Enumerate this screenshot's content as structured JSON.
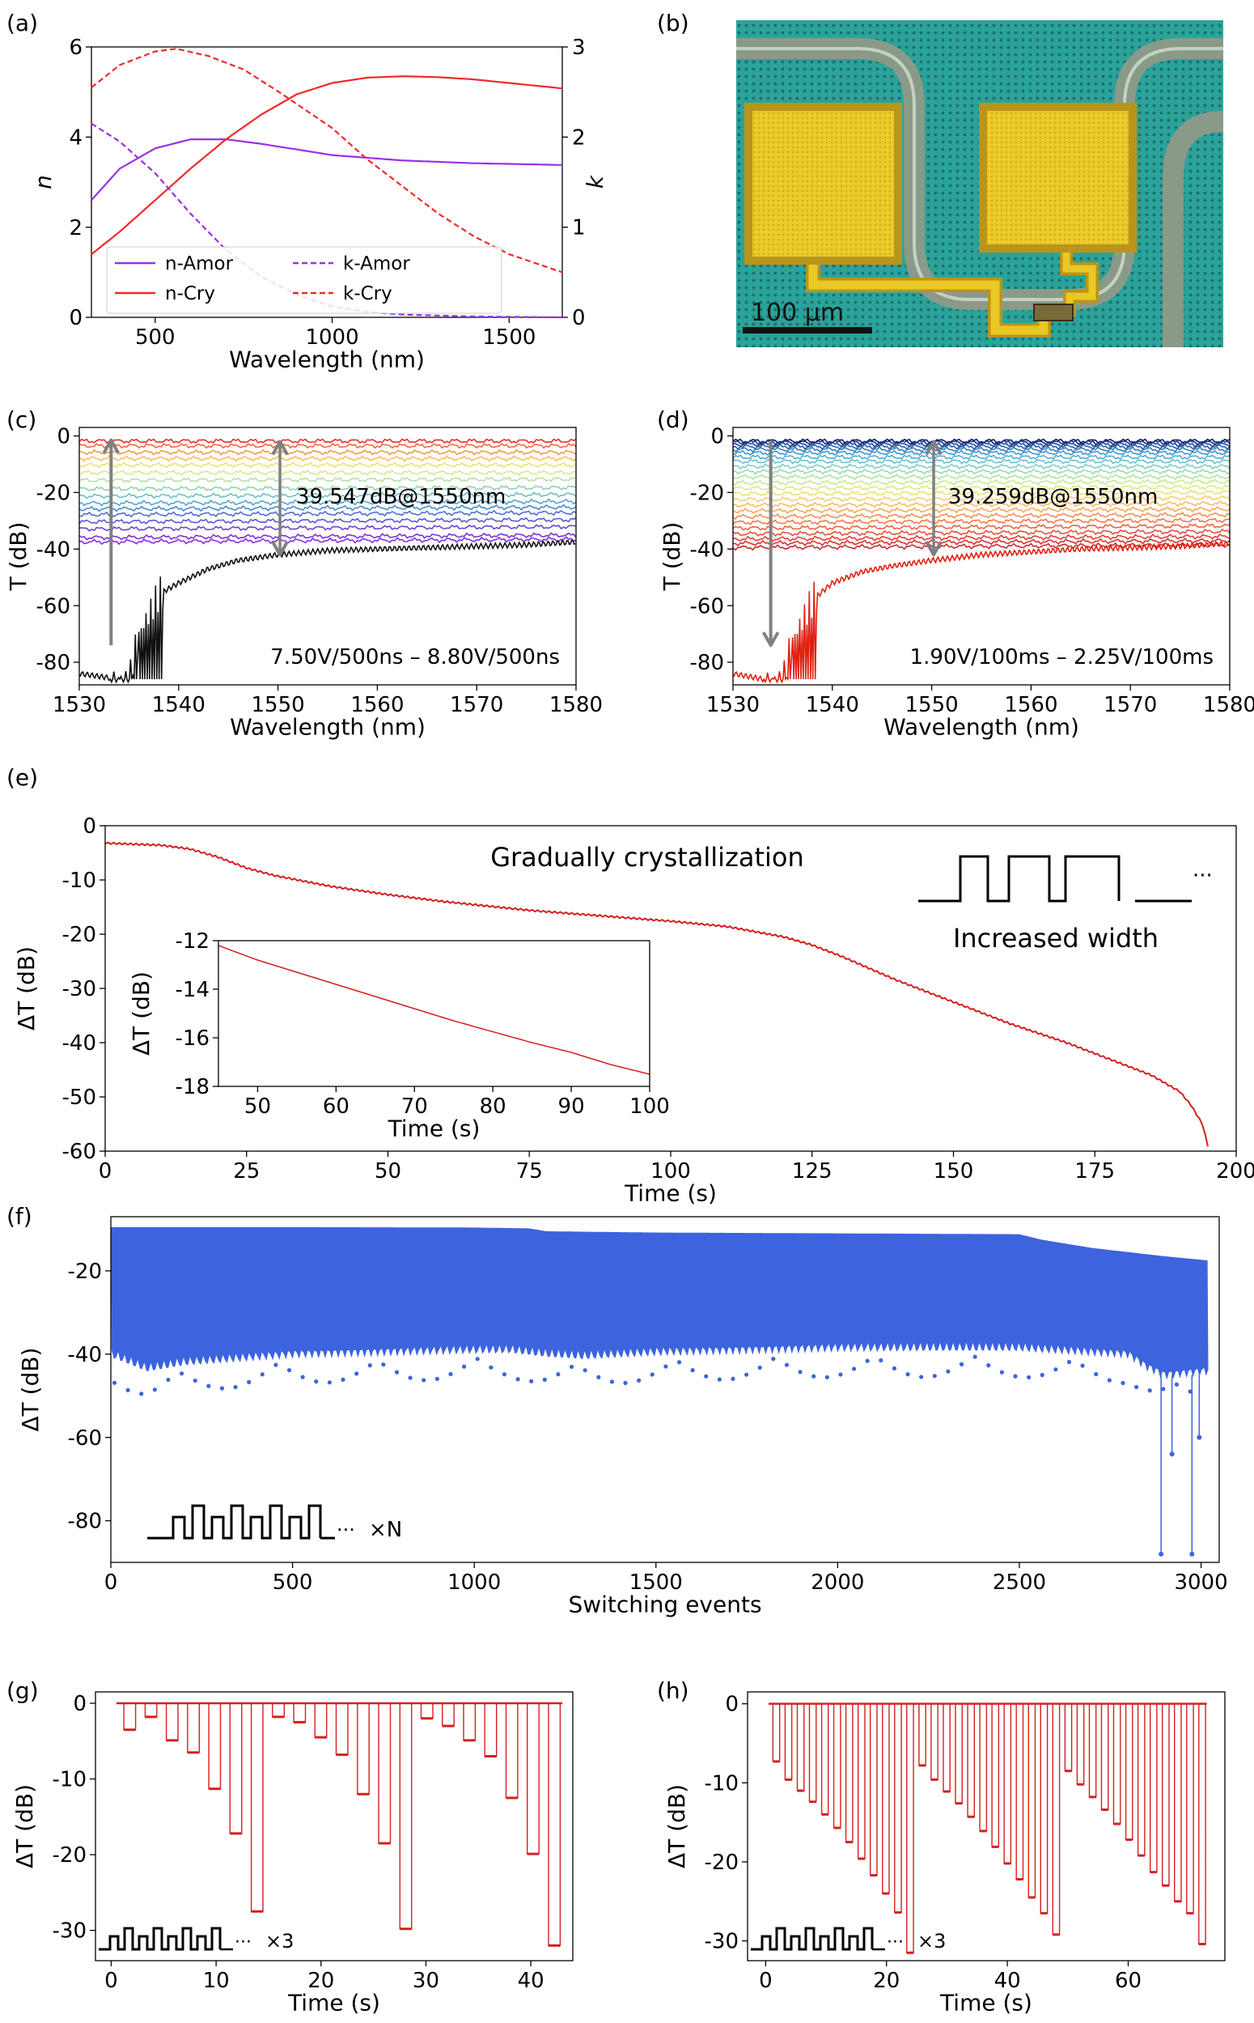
{
  "panels": {
    "a": {
      "label": "(a)"
    },
    "b": {
      "label": "(b)"
    },
    "c": {
      "label": "(c)"
    },
    "d": {
      "label": "(d)"
    },
    "e": {
      "label": "(e)"
    },
    "f": {
      "label": "(f)"
    },
    "g": {
      "label": "(g)"
    },
    "h": {
      "label": "(h)"
    }
  },
  "colors": {
    "amor": "#9b30e8",
    "cry": "#ee2b2b",
    "blue": "#3d64dd",
    "black": "#111111",
    "gray": "#808080",
    "trace_red": "#d42020"
  },
  "micrograph": {
    "scalebar_label": "100 μm",
    "description_colors": {
      "background": "#2aa39a",
      "pad": "#e8c21e",
      "waveguide": "#8a9a88"
    }
  },
  "chart_data": [
    {
      "id": "a",
      "type": "line",
      "xlabel": "Wavelength (nm)",
      "ylabel_left": "n",
      "ylabel_right": "k",
      "xlim": [
        320,
        1650
      ],
      "ylim_left": [
        0,
        6
      ],
      "ylim_right": [
        0,
        3
      ],
      "xticks": [
        500,
        1000,
        1500
      ],
      "yticks_left": [
        0,
        2,
        4,
        6
      ],
      "yticks_right": [
        0,
        1,
        2,
        3
      ],
      "legend": {
        "position": "bottom-left",
        "entries": [
          "n-Amor",
          "n-Cry",
          "k-Amor",
          "k-Cry"
        ]
      },
      "series": [
        {
          "name": "n-Amor",
          "axis": "left",
          "style": "solid",
          "color": "#9b30e8",
          "x": [
            320,
            400,
            500,
            600,
            700,
            800,
            1000,
            1200,
            1400,
            1650
          ],
          "y": [
            2.6,
            3.3,
            3.75,
            3.95,
            3.95,
            3.85,
            3.6,
            3.48,
            3.42,
            3.38
          ]
        },
        {
          "name": "n-Cry",
          "axis": "left",
          "style": "solid",
          "color": "#ee2b2b",
          "x": [
            320,
            400,
            500,
            600,
            700,
            800,
            900,
            1000,
            1100,
            1200,
            1300,
            1400,
            1500,
            1650
          ],
          "y": [
            1.4,
            1.9,
            2.6,
            3.3,
            3.95,
            4.5,
            4.95,
            5.2,
            5.32,
            5.35,
            5.33,
            5.28,
            5.2,
            5.08
          ]
        },
        {
          "name": "k-Amor",
          "axis": "right",
          "style": "dashed",
          "color": "#9b30e8",
          "x": [
            320,
            400,
            500,
            600,
            700,
            800,
            900,
            1000,
            1100,
            1200,
            1400,
            1650
          ],
          "y": [
            2.15,
            1.95,
            1.6,
            1.15,
            0.75,
            0.45,
            0.25,
            0.12,
            0.06,
            0.03,
            0.01,
            0.0
          ]
        },
        {
          "name": "k-Cry",
          "axis": "right",
          "style": "dashed",
          "color": "#ee2b2b",
          "x": [
            320,
            400,
            500,
            560,
            650,
            750,
            850,
            1000,
            1100,
            1200,
            1300,
            1400,
            1500,
            1650
          ],
          "y": [
            2.55,
            2.8,
            2.95,
            2.98,
            2.9,
            2.75,
            2.5,
            2.1,
            1.75,
            1.45,
            1.15,
            0.9,
            0.7,
            0.5
          ]
        }
      ]
    },
    {
      "id": "c",
      "type": "line",
      "xlabel": "Wavelength (nm)",
      "ylabel": "T (dB)",
      "xlim": [
        1530,
        1580
      ],
      "ylim": [
        -88,
        3
      ],
      "xticks": [
        1530,
        1540,
        1550,
        1560,
        1570,
        1580
      ],
      "yticks": [
        0,
        -20,
        -40,
        -60,
        -80
      ],
      "annotation": "39.547dB@1550nm",
      "range_label": "7.50V/500ns – 8.80V/500ns",
      "contrast_db": 39.547,
      "family": {
        "count": 16,
        "levels": [
          -1.8,
          -3.5,
          -5.8,
          -8.0,
          -10.3,
          -13.0,
          -15.5,
          -18.5,
          -21.0,
          -23.5,
          -25.5,
          -27.5,
          -30.0,
          -32.5,
          -35.5,
          -37.0
        ],
        "colors": [
          "#e03030",
          "#f06a3a",
          "#f39a4a",
          "#f6bf5a",
          "#f2df76",
          "#d8e890",
          "#b5e2a0",
          "#8ed3b0",
          "#6dc0c6",
          "#53a6d0",
          "#4a8bd0",
          "#5070d2",
          "#5e58d0",
          "#6a45d2",
          "#7a35d8",
          "#8a2ee0"
        ]
      },
      "dip_curve": {
        "color": "#111111",
        "x": [
          1530,
          1533,
          1535,
          1536,
          1538,
          1540,
          1543,
          1546,
          1550,
          1555,
          1560,
          1565,
          1570,
          1575,
          1580
        ],
        "y": [
          -84,
          -85.5,
          -86,
          -70,
          -56,
          -52,
          -47,
          -44,
          -42,
          -40.5,
          -40,
          -39.5,
          -39,
          -38.5,
          -37.5
        ]
      }
    },
    {
      "id": "d",
      "type": "line",
      "xlabel": "Wavelength (nm)",
      "ylabel": "T (dB)",
      "xlim": [
        1530,
        1580
      ],
      "ylim": [
        -88,
        3
      ],
      "xticks": [
        1530,
        1540,
        1550,
        1560,
        1570,
        1580
      ],
      "yticks": [
        0,
        -20,
        -40,
        -60,
        -80
      ],
      "annotation": "39.259dB@1550nm",
      "range_label": "1.90V/100ms – 2.25V/100ms",
      "contrast_db": 39.259,
      "family": {
        "count": 24,
        "levels": [
          -1.8,
          -2.3,
          -3.0,
          -3.8,
          -4.8,
          -6.0,
          -7.5,
          -9.0,
          -10.8,
          -12.6,
          -14.5,
          -16.4,
          -18.3,
          -20.2,
          -22.2,
          -24.2,
          -26.2,
          -28.2,
          -30.2,
          -32.2,
          -34.2,
          -36.0,
          -37.5,
          -39.0
        ],
        "colors": [
          "#0a1a6e",
          "#14307e",
          "#1e4894",
          "#2a62a8",
          "#357cbc",
          "#4396c8",
          "#53aed0",
          "#66c2cc",
          "#7ed0bd",
          "#98dbae",
          "#b2e39e",
          "#c9e891",
          "#dde886",
          "#ece07c",
          "#f5d070",
          "#f8bc66",
          "#f9a65c",
          "#f78f52",
          "#f3794a",
          "#ed6343",
          "#e6503e",
          "#de3f38",
          "#d63232",
          "#ce2a2a"
        ]
      },
      "dip_curve": {
        "color": "#e02010",
        "x": [
          1530,
          1533,
          1535,
          1536,
          1538,
          1540,
          1543,
          1546,
          1550,
          1555,
          1560,
          1565,
          1570,
          1575,
          1580
        ],
        "y": [
          -84,
          -86,
          -86,
          -72,
          -58,
          -52,
          -48,
          -46,
          -44,
          -42,
          -41,
          -40,
          -39.5,
          -39,
          -38
        ]
      }
    },
    {
      "id": "e",
      "type": "line",
      "xlabel": "Time (s)",
      "ylabel": "ΔT (dB)",
      "xlim": [
        0,
        200
      ],
      "ylim": [
        -60,
        0
      ],
      "xticks": [
        0,
        25,
        50,
        75,
        100,
        125,
        150,
        175,
        200
      ],
      "yticks": [
        0,
        -10,
        -20,
        -30,
        -40,
        -50,
        -60
      ],
      "title_annotation": "Gradually crystallization",
      "pulse_label": "Increased width",
      "series": [
        {
          "name": "ΔT",
          "color": "#d42020",
          "x": [
            0,
            10,
            15,
            20,
            25,
            30,
            40,
            50,
            60,
            75,
            90,
            100,
            110,
            120,
            125,
            130,
            140,
            150,
            160,
            170,
            180,
            185,
            190,
            192,
            194,
            195
          ],
          "y": [
            -3.2,
            -3.6,
            -4.3,
            -5.8,
            -7.8,
            -9.2,
            -11.2,
            -12.7,
            -14.0,
            -15.6,
            -16.8,
            -17.6,
            -18.6,
            -20.5,
            -22.0,
            -24.0,
            -28.5,
            -32.5,
            -36.5,
            -40.0,
            -44.0,
            -46.0,
            -49.0,
            -51.5,
            -55.0,
            -59.0
          ]
        }
      ],
      "inset": {
        "xlabel": "Time (s)",
        "ylabel": "ΔT (dB)",
        "xlim": [
          45,
          100
        ],
        "ylim": [
          -18,
          -12
        ],
        "xticks": [
          50,
          60,
          70,
          80,
          90,
          100
        ],
        "yticks": [
          -12,
          -14,
          -16,
          -18
        ],
        "series": [
          {
            "x": [
              45,
              50,
              55,
              60,
              65,
              70,
              75,
              80,
              85,
              90,
              95,
              100
            ],
            "y": [
              -12.2,
              -12.8,
              -13.3,
              -13.8,
              -14.3,
              -14.8,
              -15.3,
              -15.75,
              -16.2,
              -16.6,
              -17.1,
              -17.5
            ]
          }
        ]
      }
    },
    {
      "id": "f",
      "type": "area",
      "xlabel": "Switching events",
      "ylabel": "ΔT (dB)",
      "xlim": [
        0,
        3050
      ],
      "ylim": [
        -90,
        -7
      ],
      "xticks": [
        0,
        500,
        1000,
        1500,
        2000,
        2500,
        3000
      ],
      "yticks": [
        -20,
        -40,
        -60,
        -80
      ],
      "pulse_label": "×N",
      "upper": {
        "x": [
          0,
          500,
          1000,
          1150,
          1200,
          1500,
          2000,
          2500,
          2560,
          2700,
          2900,
          3020
        ],
        "y": [
          -9.5,
          -9.5,
          -9.6,
          -9.8,
          -10.5,
          -10.8,
          -11.0,
          -11.2,
          -12.5,
          -14.5,
          -16.5,
          -17.5
        ]
      },
      "lower": {
        "x": [
          0,
          100,
          200,
          500,
          1000,
          1100,
          1200,
          1300,
          1500,
          2000,
          2500,
          2800,
          2850,
          2900,
          3020
        ],
        "y": [
          -40.0,
          -43.5,
          -42.0,
          -40.0,
          -39.0,
          -39.0,
          -40.0,
          -40.5,
          -39.5,
          -38.5,
          -38.5,
          -40.0,
          -43.0,
          -45.0,
          -44.0
        ]
      },
      "spikes": [
        {
          "x": 2890,
          "y": -88
        },
        {
          "x": 2920,
          "y": -64
        },
        {
          "x": 2975,
          "y": -88
        },
        {
          "x": 2995,
          "y": -60
        }
      ]
    },
    {
      "id": "g",
      "type": "line",
      "xlabel": "Time (s)",
      "ylabel": "ΔT (dB)",
      "xlim": [
        -1.5,
        44
      ],
      "ylim": [
        -34,
        1.5
      ],
      "xticks": [
        0,
        10,
        20,
        30,
        40
      ],
      "yticks": [
        0,
        -10,
        -20,
        -30
      ],
      "pulse_label": "×3",
      "dips": [
        [
          -3.5,
          -1.8,
          -4.9,
          -6.5,
          -11.3,
          -17.2,
          -27.5
        ],
        [
          -1.8,
          -2.5,
          -4.5,
          -6.8,
          -12.0,
          -18.5,
          -29.8
        ],
        [
          -2.0,
          -3.0,
          -4.9,
          -7.0,
          -12.5,
          -19.9,
          -32.0
        ]
      ],
      "dip_period_s": 1.75,
      "start_s": 0.5,
      "end_s": 43
    },
    {
      "id": "h",
      "type": "line",
      "xlabel": "Time (s)",
      "ylabel": "ΔT (dB)",
      "xlim": [
        -3,
        76
      ],
      "ylim": [
        -32.5,
        1.5
      ],
      "xticks": [
        0,
        20,
        40,
        60
      ],
      "yticks": [
        0,
        -10,
        -20,
        -30
      ],
      "pulse_label": "×3",
      "dips": [
        [
          -7.3,
          -9.6,
          -11.0,
          -12.4,
          -14.0,
          -15.7,
          -17.5,
          -19.6,
          -21.7,
          -24.0,
          -26.4,
          -31.5
        ],
        [
          -7.8,
          -9.6,
          -11.1,
          -12.6,
          -14.3,
          -16.1,
          -18.1,
          -20.2,
          -22.2,
          -24.5,
          -26.5,
          -29.2
        ],
        [
          -8.5,
          -10.2,
          -11.8,
          -13.4,
          -15.2,
          -17.2,
          -19.2,
          -21.3,
          -23.0,
          -25.0,
          -26.5,
          -30.4
        ]
      ],
      "dip_period_s": 2.0,
      "start_s": 0.5,
      "end_s": 73
    }
  ]
}
